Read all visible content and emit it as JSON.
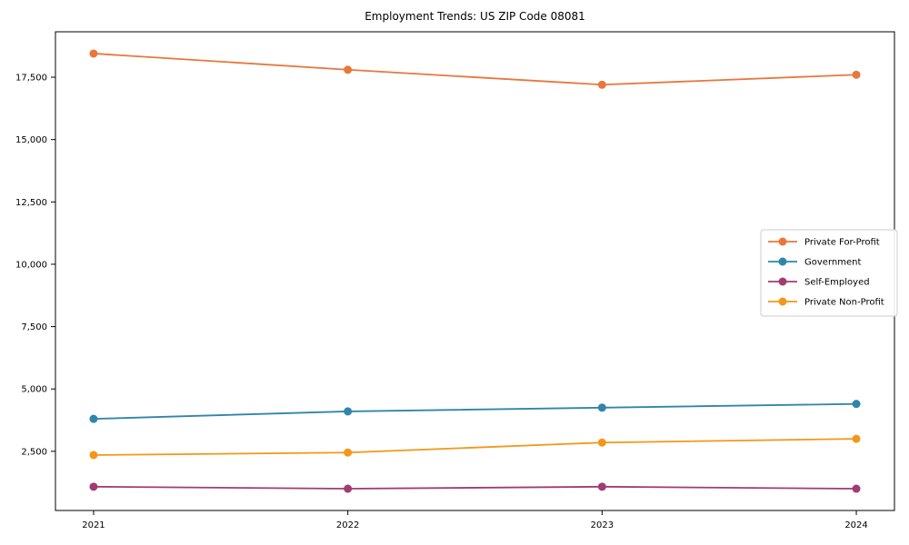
{
  "figure": {
    "background": "#ffffff",
    "plot_border_color": "#000000",
    "tick_color": "#000000"
  },
  "chart_data": {
    "type": "line",
    "title": "Employment Trends: US ZIP Code 08081",
    "xlabel": "",
    "ylabel": "",
    "x": [
      2021,
      2022,
      2023,
      2024
    ],
    "x_tick_labels": [
      "2021",
      "2022",
      "2023",
      "2024"
    ],
    "series": [
      {
        "name": "Private For-Profit",
        "color": "#e8773c",
        "values": [
          18450,
          17800,
          17200,
          17600
        ]
      },
      {
        "name": "Government",
        "color": "#2e86ab",
        "values": [
          3800,
          4100,
          4250,
          4400
        ]
      },
      {
        "name": "Self-Employed",
        "color": "#a23b72",
        "values": [
          1080,
          1000,
          1080,
          1000
        ]
      },
      {
        "name": "Private Non-Profit",
        "color": "#f39718",
        "values": [
          2350,
          2450,
          2850,
          3000
        ]
      }
    ],
    "xlim": [
      2020.85,
      2024.15
    ],
    "ylim": [
      127,
      19322
    ],
    "yticks": [
      2500,
      5000,
      7500,
      10000,
      12500,
      15000,
      17500
    ],
    "y_tick_labels": [
      "2,500",
      "5,000",
      "7,500",
      "10,000",
      "12,500",
      "15,000",
      "17,500"
    ],
    "grid": false,
    "marker": "circle",
    "legend": {
      "position": "center-right",
      "border_color": "#cccccc",
      "background": "#ffffff",
      "entries": [
        "Private For-Profit",
        "Government",
        "Self-Employed",
        "Private Non-Profit"
      ]
    }
  }
}
